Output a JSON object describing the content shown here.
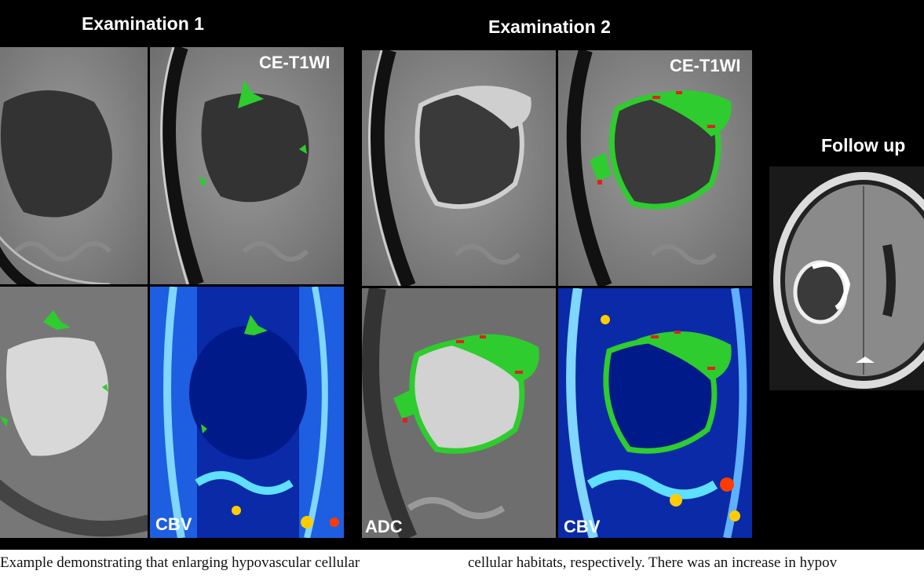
{
  "figure": {
    "exam1_title": "Examination 1",
    "exam2_title": "Examination 2",
    "followup_title": "Follow up",
    "labels": {
      "ce_t1wi": "CE-T1WI",
      "cbv": "CBV",
      "adc": "ADC"
    },
    "colors": {
      "background": "#000000",
      "habitat_green": "#2ecc2e",
      "habitat_red": "#e02020"
    }
  },
  "caption": {
    "left": "Example demonstrating that enlarging hypovascular cellular",
    "right": "cellular habitats, respectively. There was an increase in hypov"
  }
}
